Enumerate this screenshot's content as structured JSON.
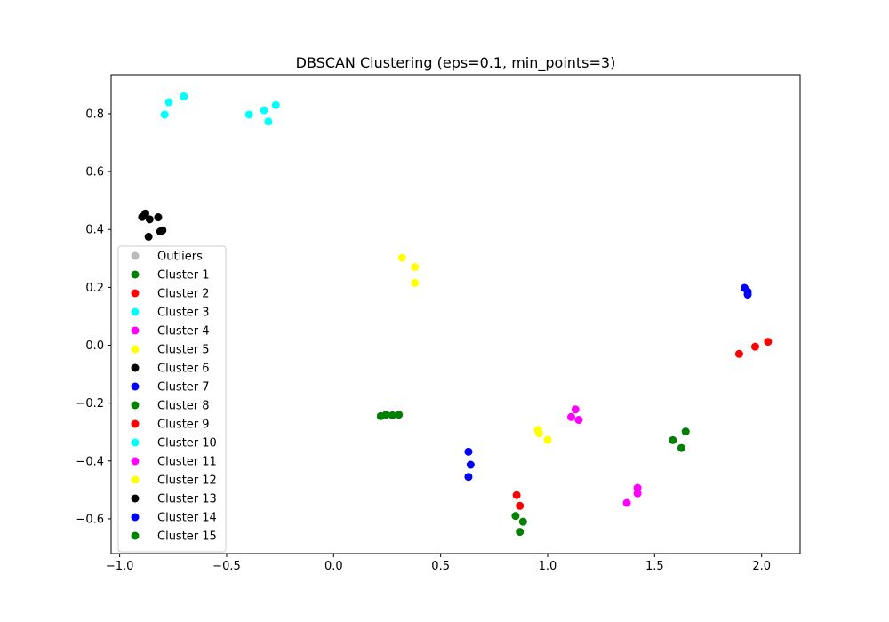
{
  "chart_data": {
    "type": "scatter",
    "title": "DBSCAN Clustering (eps=0.1, min_points=3)",
    "xlabel": "",
    "ylabel": "",
    "xlim": [
      -1.04,
      2.18
    ],
    "ylim": [
      -0.72,
      0.935
    ],
    "x_ticks": [
      -1.0,
      -0.5,
      0.0,
      0.5,
      1.0,
      1.5,
      2.0
    ],
    "x_tick_labels": [
      "−1.0",
      "−0.5",
      "0.0",
      "0.5",
      "1.0",
      "1.5",
      "2.0"
    ],
    "y_ticks": [
      -0.6,
      -0.4,
      -0.2,
      0.0,
      0.2,
      0.4,
      0.6,
      0.8
    ],
    "y_tick_labels": [
      "−0.6",
      "−0.4",
      "−0.2",
      "0.0",
      "0.2",
      "0.4",
      "0.6",
      "0.8"
    ],
    "grid": false,
    "legend_placement": "lower-left",
    "series": [
      {
        "name": "Outliers",
        "color": "#a9a9a9",
        "points": []
      },
      {
        "name": "Cluster 1",
        "color": "#008000",
        "points": [
          [
            0.22,
            -0.245
          ],
          [
            0.245,
            -0.24
          ],
          [
            0.275,
            -0.242
          ],
          [
            0.305,
            -0.24
          ]
        ]
      },
      {
        "name": "Cluster 2",
        "color": "#ff0000",
        "points": [
          [
            1.895,
            -0.03
          ],
          [
            1.97,
            -0.005
          ],
          [
            2.03,
            0.012
          ]
        ]
      },
      {
        "name": "Cluster 3",
        "color": "#00ffff",
        "points": [
          [
            -0.395,
            0.797
          ],
          [
            -0.325,
            0.812
          ],
          [
            -0.305,
            0.773
          ],
          [
            -0.27,
            0.83
          ]
        ]
      },
      {
        "name": "Cluster 4",
        "color": "#ff00ff",
        "points": [
          [
            1.11,
            -0.248
          ],
          [
            1.13,
            -0.222
          ],
          [
            1.145,
            -0.258
          ]
        ]
      },
      {
        "name": "Cluster 5",
        "color": "#ffff00",
        "points": [
          [
            0.32,
            0.302
          ],
          [
            0.38,
            0.27
          ],
          [
            0.38,
            0.215
          ]
        ]
      },
      {
        "name": "Cluster 6",
        "color": "#000000",
        "points": [
          [
            -0.895,
            0.443
          ],
          [
            -0.88,
            0.455
          ],
          [
            -0.86,
            0.435
          ],
          [
            -0.82,
            0.442
          ],
          [
            -0.81,
            0.393
          ],
          [
            -0.8,
            0.397
          ],
          [
            -0.865,
            0.375
          ]
        ]
      },
      {
        "name": "Cluster 7",
        "color": "#0000ff",
        "points": [
          [
            1.92,
            0.198
          ],
          [
            1.935,
            0.185
          ],
          [
            1.935,
            0.175
          ]
        ]
      },
      {
        "name": "Cluster 8",
        "color": "#008000",
        "points": [
          [
            1.585,
            -0.328
          ],
          [
            1.625,
            -0.355
          ],
          [
            1.645,
            -0.298
          ]
        ]
      },
      {
        "name": "Cluster 9",
        "color": "#ff0000",
        "points": [
          [
            0.855,
            -0.518
          ],
          [
            0.87,
            -0.555
          ]
        ]
      },
      {
        "name": "Cluster 10",
        "color": "#00ffff",
        "points": [
          [
            -0.79,
            0.797
          ],
          [
            -0.77,
            0.84
          ],
          [
            -0.7,
            0.86
          ]
        ]
      },
      {
        "name": "Cluster 11",
        "color": "#ff00ff",
        "points": [
          [
            1.37,
            -0.545
          ],
          [
            1.42,
            -0.493
          ],
          [
            1.42,
            -0.512
          ]
        ]
      },
      {
        "name": "Cluster 12",
        "color": "#ffff00",
        "points": [
          [
            0.955,
            -0.292
          ],
          [
            0.96,
            -0.305
          ],
          [
            1.0,
            -0.327
          ]
        ]
      },
      {
        "name": "Cluster 13",
        "color": "#000000",
        "points": []
      },
      {
        "name": "Cluster 14",
        "color": "#0000ff",
        "points": [
          [
            0.63,
            -0.368
          ],
          [
            0.64,
            -0.413
          ],
          [
            0.63,
            -0.455
          ]
        ]
      },
      {
        "name": "Cluster 15",
        "color": "#008000",
        "points": [
          [
            0.85,
            -0.59
          ],
          [
            0.885,
            -0.61
          ],
          [
            0.87,
            -0.645
          ]
        ]
      }
    ]
  }
}
